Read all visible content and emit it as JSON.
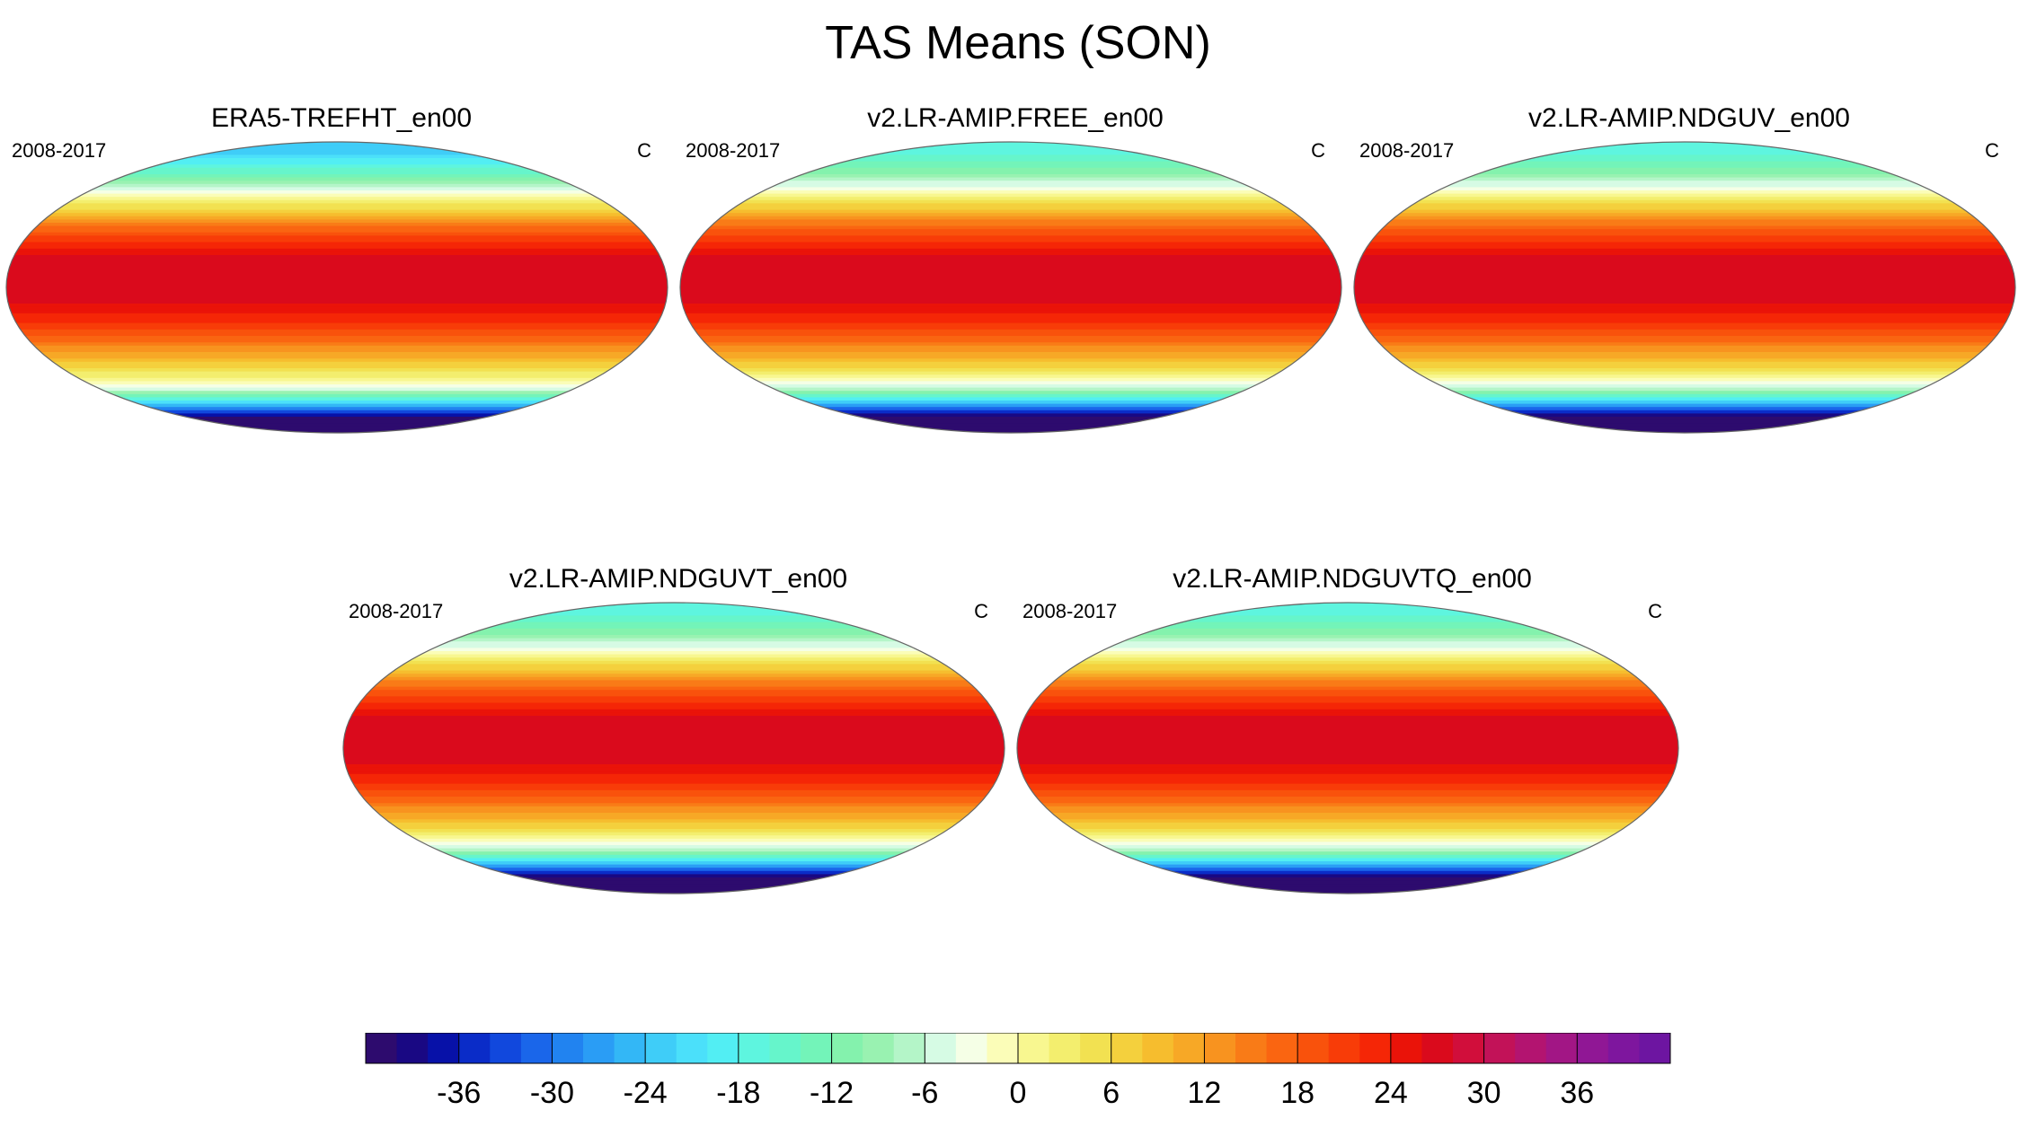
{
  "chart_data": {
    "type": "heatmap",
    "title": "TAS Means (SON)",
    "variable": "TAS",
    "season": "SON",
    "units": "C",
    "period": "2008-2017",
    "colorbar": {
      "range": [
        -42,
        42
      ],
      "interval": 2,
      "ticks": [
        -36,
        -30,
        -24,
        -18,
        -12,
        -6,
        0,
        6,
        12,
        18,
        24,
        30,
        36
      ],
      "tick_labels": [
        "-36",
        "-30",
        "-24",
        "-18",
        "-12",
        "-6",
        "0",
        "6",
        "12",
        "18",
        "24",
        "30",
        "36"
      ],
      "colors": [
        "#2d0b6e",
        "#190883",
        "#0711a8",
        "#0a2cc8",
        "#1148dd",
        "#1a66ea",
        "#2183f0",
        "#2a9df5",
        "#33b7f6",
        "#3fcdf8",
        "#4be0fa",
        "#52eef3",
        "#5ef5df",
        "#66f5cb",
        "#73f4b9",
        "#84f2ad",
        "#99f2b1",
        "#b4f5c8",
        "#d6fbe4",
        "#f5ffe6",
        "#fbfdb8",
        "#f8f790",
        "#f3ee6e",
        "#f2e151",
        "#f4d03d",
        "#f6bd2e",
        "#f7a826",
        "#f8931f",
        "#f97b17",
        "#fa6511",
        "#f9520c",
        "#f83c08",
        "#f52606",
        "#ea1309",
        "#da0a1c",
        "#d10e3b",
        "#c21258",
        "#b31470",
        "#a21685",
        "#901795",
        "#7e169e",
        "#6d15a1"
      ]
    },
    "panels": [
      {
        "title": "ERA5-TREFHT_en00",
        "left_label": "2008-2017",
        "right_label": "C",
        "zonal_mean_lat": [
          -90,
          -80,
          -72,
          -66,
          -60,
          -54,
          -48,
          -40,
          -30,
          -20,
          -10,
          0,
          10,
          20,
          30,
          40,
          50,
          58,
          64,
          70,
          76,
          82,
          90
        ],
        "zonal_mean_tas": [
          -48,
          -40,
          -24,
          -10,
          -2,
          3,
          7,
          12,
          18,
          23,
          26,
          27,
          27,
          26,
          21,
          14,
          5,
          -2,
          -8,
          -14,
          -18,
          -22,
          -24
        ]
      },
      {
        "title": "v2.LR-AMIP.FREE_en00",
        "left_label": "2008-2017",
        "right_label": "C",
        "zonal_mean_lat": [
          -90,
          -80,
          -72,
          -66,
          -60,
          -54,
          -48,
          -40,
          -30,
          -20,
          -10,
          0,
          10,
          20,
          30,
          40,
          50,
          58,
          64,
          70,
          76,
          82,
          90
        ],
        "zonal_mean_tas": [
          -46,
          -42,
          -26,
          -12,
          -3,
          2,
          7,
          12,
          18,
          23,
          26,
          27,
          27,
          26,
          21,
          15,
          7,
          0,
          -5,
          -10,
          -13,
          -16,
          -18
        ]
      },
      {
        "title": "v2.LR-AMIP.NDGUV_en00",
        "left_label": "2008-2017",
        "right_label": "C",
        "zonal_mean_lat": [
          -90,
          -80,
          -72,
          -66,
          -60,
          -54,
          -48,
          -40,
          -30,
          -20,
          -10,
          0,
          10,
          20,
          30,
          40,
          50,
          58,
          64,
          70,
          76,
          82,
          90
        ],
        "zonal_mean_tas": [
          -46,
          -42,
          -26,
          -12,
          -3,
          2,
          7,
          12,
          18,
          23,
          26,
          27,
          27,
          26,
          21,
          15,
          7,
          0,
          -5,
          -10,
          -13,
          -16,
          -18
        ]
      },
      {
        "title": "v2.LR-AMIP.NDGUVT_en00",
        "left_label": "2008-2017",
        "right_label": "C",
        "zonal_mean_lat": [
          -90,
          -80,
          -72,
          -66,
          -60,
          -54,
          -48,
          -40,
          -30,
          -20,
          -10,
          0,
          10,
          20,
          30,
          40,
          50,
          58,
          64,
          70,
          76,
          82,
          90
        ],
        "zonal_mean_tas": [
          -46,
          -42,
          -26,
          -12,
          -3,
          2,
          7,
          12,
          18,
          23,
          26,
          27,
          27,
          26,
          21,
          15,
          7,
          0,
          -5,
          -10,
          -13,
          -16,
          -18
        ]
      },
      {
        "title": "v2.LR-AMIP.NDGUVTQ_en00",
        "left_label": "2008-2017",
        "right_label": "C",
        "zonal_mean_lat": [
          -90,
          -80,
          -72,
          -66,
          -60,
          -54,
          -48,
          -40,
          -30,
          -20,
          -10,
          0,
          10,
          20,
          30,
          40,
          50,
          58,
          64,
          70,
          76,
          82,
          90
        ],
        "zonal_mean_tas": [
          -46,
          -42,
          -26,
          -12,
          -3,
          2,
          7,
          12,
          18,
          23,
          26,
          27,
          27,
          26,
          21,
          15,
          7,
          0,
          -5,
          -10,
          -13,
          -16,
          -18
        ]
      }
    ]
  }
}
